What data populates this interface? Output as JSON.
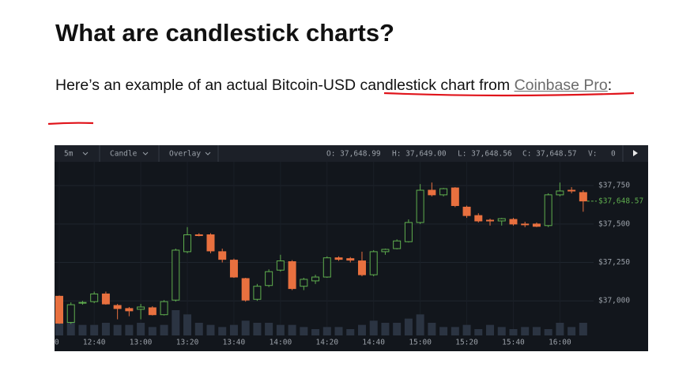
{
  "heading": "What are candlestick charts?",
  "paragraph": {
    "text": "Here’s an example of an actual Bitcoin-USD candlestick chart from ",
    "link": "Coinbase Pro",
    "end": ":"
  },
  "toolbar": {
    "interval": "5m",
    "style": "Candle",
    "overlay": "Overlay",
    "open": "O: 37,648.99",
    "high": "H: 37,649.00",
    "low": "L: 37,648.56",
    "close": "C: 37,648.57",
    "volume_label": "V:",
    "volume": "0"
  },
  "chart_data": {
    "type": "candlestick",
    "categories": [
      "0",
      null,
      null,
      "12:40",
      null,
      null,
      null,
      "13:00",
      null,
      null,
      null,
      "13:20",
      null,
      null,
      null,
      "13:40",
      null,
      null,
      null,
      "14:00",
      null,
      null,
      null,
      "14:20",
      null,
      null,
      null,
      "14:40",
      null,
      null,
      null,
      "15:00",
      null,
      null,
      null,
      "15:20",
      null,
      null,
      null,
      "15:40",
      null,
      null,
      null,
      "16:00",
      null,
      null
    ],
    "open": [
      37030,
      36860,
      36985,
      36995,
      37045,
      36970,
      36950,
      36945,
      36955,
      36910,
      37005,
      37320,
      37430,
      37430,
      37320,
      37265,
      37145,
      37010,
      37100,
      37200,
      37255,
      37095,
      37130,
      37155,
      37280,
      37275,
      37260,
      37170,
      37320,
      37340,
      37385,
      37510,
      37720,
      37690,
      37735,
      37610,
      37555,
      37525,
      37520,
      37530,
      37500,
      37500,
      37490,
      37690,
      37720,
      37705
    ],
    "high": [
      37035,
      36990,
      37000,
      37060,
      37060,
      36980,
      36960,
      36980,
      36965,
      37005,
      37340,
      37480,
      37440,
      37440,
      37340,
      37275,
      37150,
      37110,
      37205,
      37300,
      37265,
      37150,
      37170,
      37290,
      37290,
      37285,
      37320,
      37330,
      37340,
      37400,
      37530,
      37760,
      37770,
      37735,
      37740,
      37620,
      37570,
      37535,
      37540,
      37540,
      37515,
      37510,
      37700,
      37770,
      37740,
      37720
    ],
    "low": [
      36850,
      36850,
      36975,
      36985,
      36975,
      36880,
      36900,
      36880,
      36905,
      36905,
      36995,
      37310,
      37420,
      37310,
      37250,
      37150,
      36995,
      37000,
      37090,
      37190,
      37070,
      37070,
      37110,
      37150,
      37260,
      37250,
      37160,
      37160,
      37300,
      37335,
      37380,
      37500,
      37680,
      37680,
      37610,
      37540,
      37510,
      37490,
      37490,
      37490,
      37480,
      37480,
      37480,
      37680,
      37700,
      37580
    ],
    "close": [
      36855,
      36975,
      36990,
      37045,
      36980,
      36950,
      36935,
      36960,
      36910,
      36995,
      37330,
      37430,
      37425,
      37325,
      37270,
      37155,
      37005,
      37095,
      37190,
      37260,
      37080,
      37140,
      37155,
      37280,
      37270,
      37265,
      37170,
      37320,
      37335,
      37390,
      37510,
      37720,
      37690,
      37730,
      37620,
      37555,
      37520,
      37520,
      37535,
      37500,
      37495,
      37485,
      37690,
      37715,
      37715,
      37650
    ],
    "volume": [
      6,
      7,
      5,
      5,
      6,
      5,
      5,
      6,
      4,
      5,
      12,
      10,
      6,
      5,
      4,
      5,
      7,
      6,
      6,
      5,
      5,
      4,
      3,
      4,
      4,
      3,
      5,
      7,
      6,
      6,
      8,
      10,
      6,
      4,
      4,
      5,
      3,
      5,
      4,
      3,
      4,
      4,
      3,
      6,
      4,
      6
    ],
    "up_color": "#5fae4e",
    "down_color": "#e8703f",
    "volume_color": "#2b3442",
    "ylim": [
      36775,
      37905
    ],
    "yticks": [
      {
        "value": 37000,
        "label": "$37,000"
      },
      {
        "value": 37250,
        "label": "$37,250"
      },
      {
        "value": 37500,
        "label": "$37,500"
      },
      {
        "value": 37750,
        "label": "$37,750"
      }
    ],
    "last_price": {
      "value": 37648.57,
      "label": "$37,648.57"
    },
    "grid": true
  }
}
